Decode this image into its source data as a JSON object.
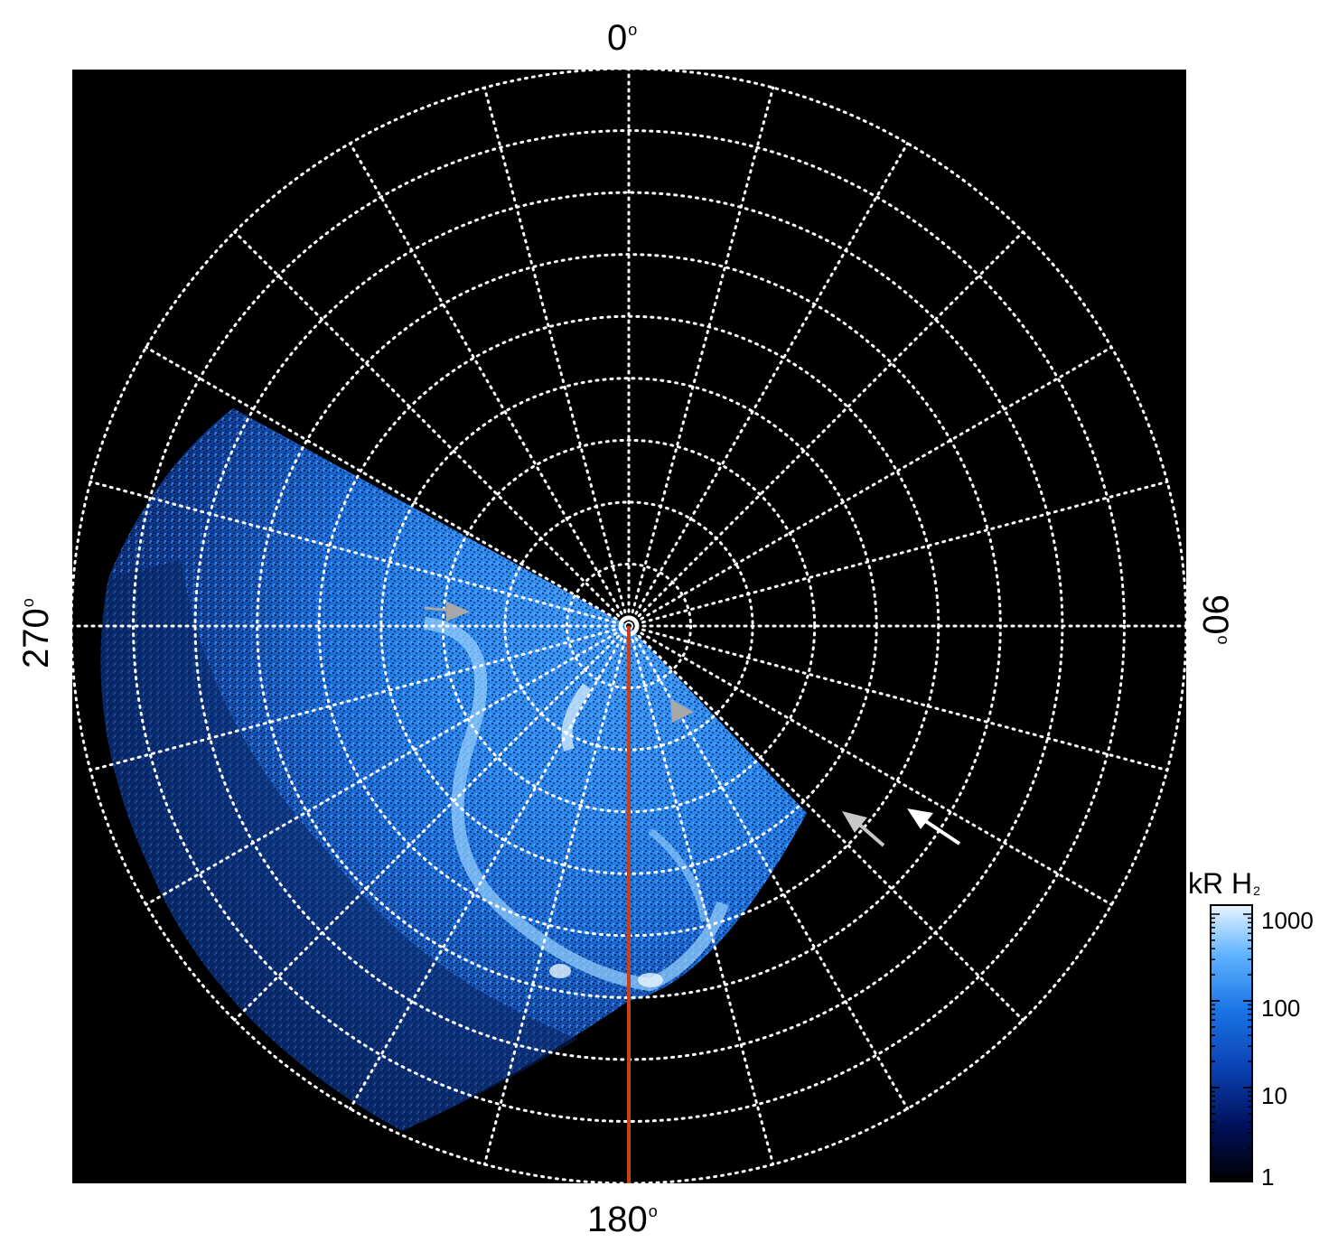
{
  "labels": {
    "top": "0",
    "bottom": "180",
    "left": "270",
    "right": "90",
    "degree_symbol": "o"
  },
  "colorbar": {
    "unit_prefix": "kR H",
    "unit_subscript": "2",
    "ticks": [
      "1000",
      "100",
      "10",
      "1"
    ],
    "scale": "log",
    "range": [
      1,
      1000
    ],
    "colors": [
      "#000000",
      "#00105a",
      "#0a3fb0",
      "#1a74e6",
      "#5fb3ff",
      "#e8f4ff"
    ]
  },
  "colors": {
    "background": "#000000",
    "grid": "#ffffff",
    "meridian_line": "#c8401a",
    "arrow_gray": "#a8a8a8",
    "arrow_white": "#ffffff"
  },
  "grid": {
    "meridian_step_degrees": 15,
    "latitude_circles": 9,
    "style": "dotted"
  },
  "markers": {
    "gray_arrowheads": 2,
    "arrows": [
      "light-gray",
      "white"
    ]
  }
}
